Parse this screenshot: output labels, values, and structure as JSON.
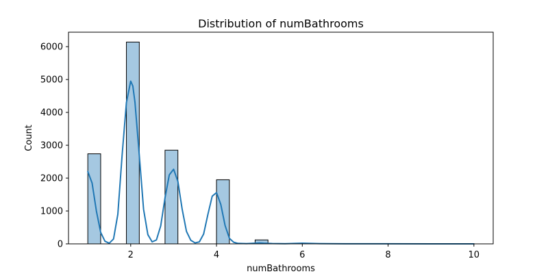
{
  "chart_data": {
    "type": "bar",
    "title": "Distribution of numBathrooms",
    "xlabel": "numBathrooms",
    "ylabel": "Count",
    "xlim": [
      0.55,
      10.45
    ],
    "ylim": [
      0,
      6440
    ],
    "xticks": [
      2,
      4,
      6,
      8,
      10
    ],
    "yticks": [
      0,
      1000,
      2000,
      3000,
      4000,
      5000,
      6000
    ],
    "bin_width": 0.3,
    "bars": [
      {
        "x_start": 1.0,
        "x_end": 1.3,
        "value": 2740
      },
      {
        "x_start": 1.9,
        "x_end": 2.2,
        "value": 6140
      },
      {
        "x_start": 2.8,
        "x_end": 3.1,
        "value": 2850
      },
      {
        "x_start": 4.0,
        "x_end": 4.3,
        "value": 1950
      },
      {
        "x_start": 4.9,
        "x_end": 5.2,
        "value": 120
      },
      {
        "x_start": 5.8,
        "x_end": 6.1,
        "value": 15
      },
      {
        "x_start": 7.0,
        "x_end": 7.3,
        "value": 5
      },
      {
        "x_start": 9.7,
        "x_end": 10.0,
        "value": 3
      }
    ],
    "kde": {
      "x": [
        1.0,
        1.1,
        1.2,
        1.3,
        1.4,
        1.5,
        1.6,
        1.7,
        1.8,
        1.9,
        2.0,
        2.05,
        2.1,
        2.2,
        2.3,
        2.4,
        2.5,
        2.6,
        2.7,
        2.8,
        2.9,
        3.0,
        3.1,
        3.2,
        3.3,
        3.4,
        3.5,
        3.6,
        3.7,
        3.8,
        3.9,
        4.0,
        4.1,
        4.2,
        4.3,
        4.4,
        4.5,
        4.7,
        4.9,
        5.0,
        5.1,
        5.3,
        5.6,
        6.0,
        6.4,
        7.0,
        8.0,
        9.0,
        10.0
      ],
      "y": [
        2200,
        1850,
        1000,
        350,
        80,
        20,
        150,
        900,
        2700,
        4300,
        4950,
        4800,
        4300,
        2700,
        1050,
        280,
        60,
        120,
        550,
        1400,
        2100,
        2270,
        1900,
        1050,
        380,
        110,
        30,
        60,
        300,
        900,
        1450,
        1560,
        1200,
        560,
        170,
        50,
        15,
        8,
        20,
        28,
        20,
        10,
        6,
        22,
        8,
        3,
        2,
        1,
        1
      ],
      "color": "#1f77b4"
    },
    "bar_fill": "#a5c8e1",
    "bar_edge": "#000000",
    "grid": false
  }
}
